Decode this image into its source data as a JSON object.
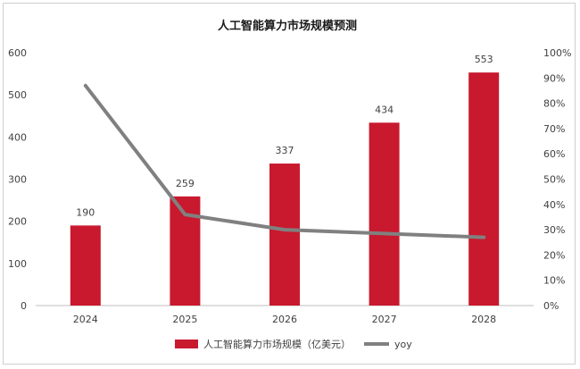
{
  "chart_data": {
    "type": "bar",
    "title": "人工智能算力市场规模预测",
    "categories": [
      "2024",
      "2025",
      "2026",
      "2027",
      "2028"
    ],
    "series": [
      {
        "name": "人工智能算力市场规模（亿美元）",
        "kind": "bar",
        "axis": "left",
        "color": "#c8192e",
        "values": [
          190,
          259,
          337,
          434,
          553
        ],
        "data_labels": [
          "190",
          "259",
          "337",
          "434",
          "553"
        ]
      },
      {
        "name": "yoy",
        "kind": "line",
        "axis": "right",
        "color": "#808080",
        "values": [
          0.87,
          0.36,
          0.3,
          0.285,
          0.27
        ]
      }
    ],
    "y_left": {
      "min": 0,
      "max": 600,
      "ticks": [
        "0",
        "100",
        "200",
        "300",
        "400",
        "500",
        "600"
      ]
    },
    "y_right": {
      "min": 0,
      "max": 1,
      "ticks": [
        "0%",
        "10%",
        "20%",
        "30%",
        "40%",
        "50%",
        "60%",
        "70%",
        "80%",
        "90%",
        "100%"
      ]
    },
    "grid": false,
    "legend": "bottom"
  }
}
